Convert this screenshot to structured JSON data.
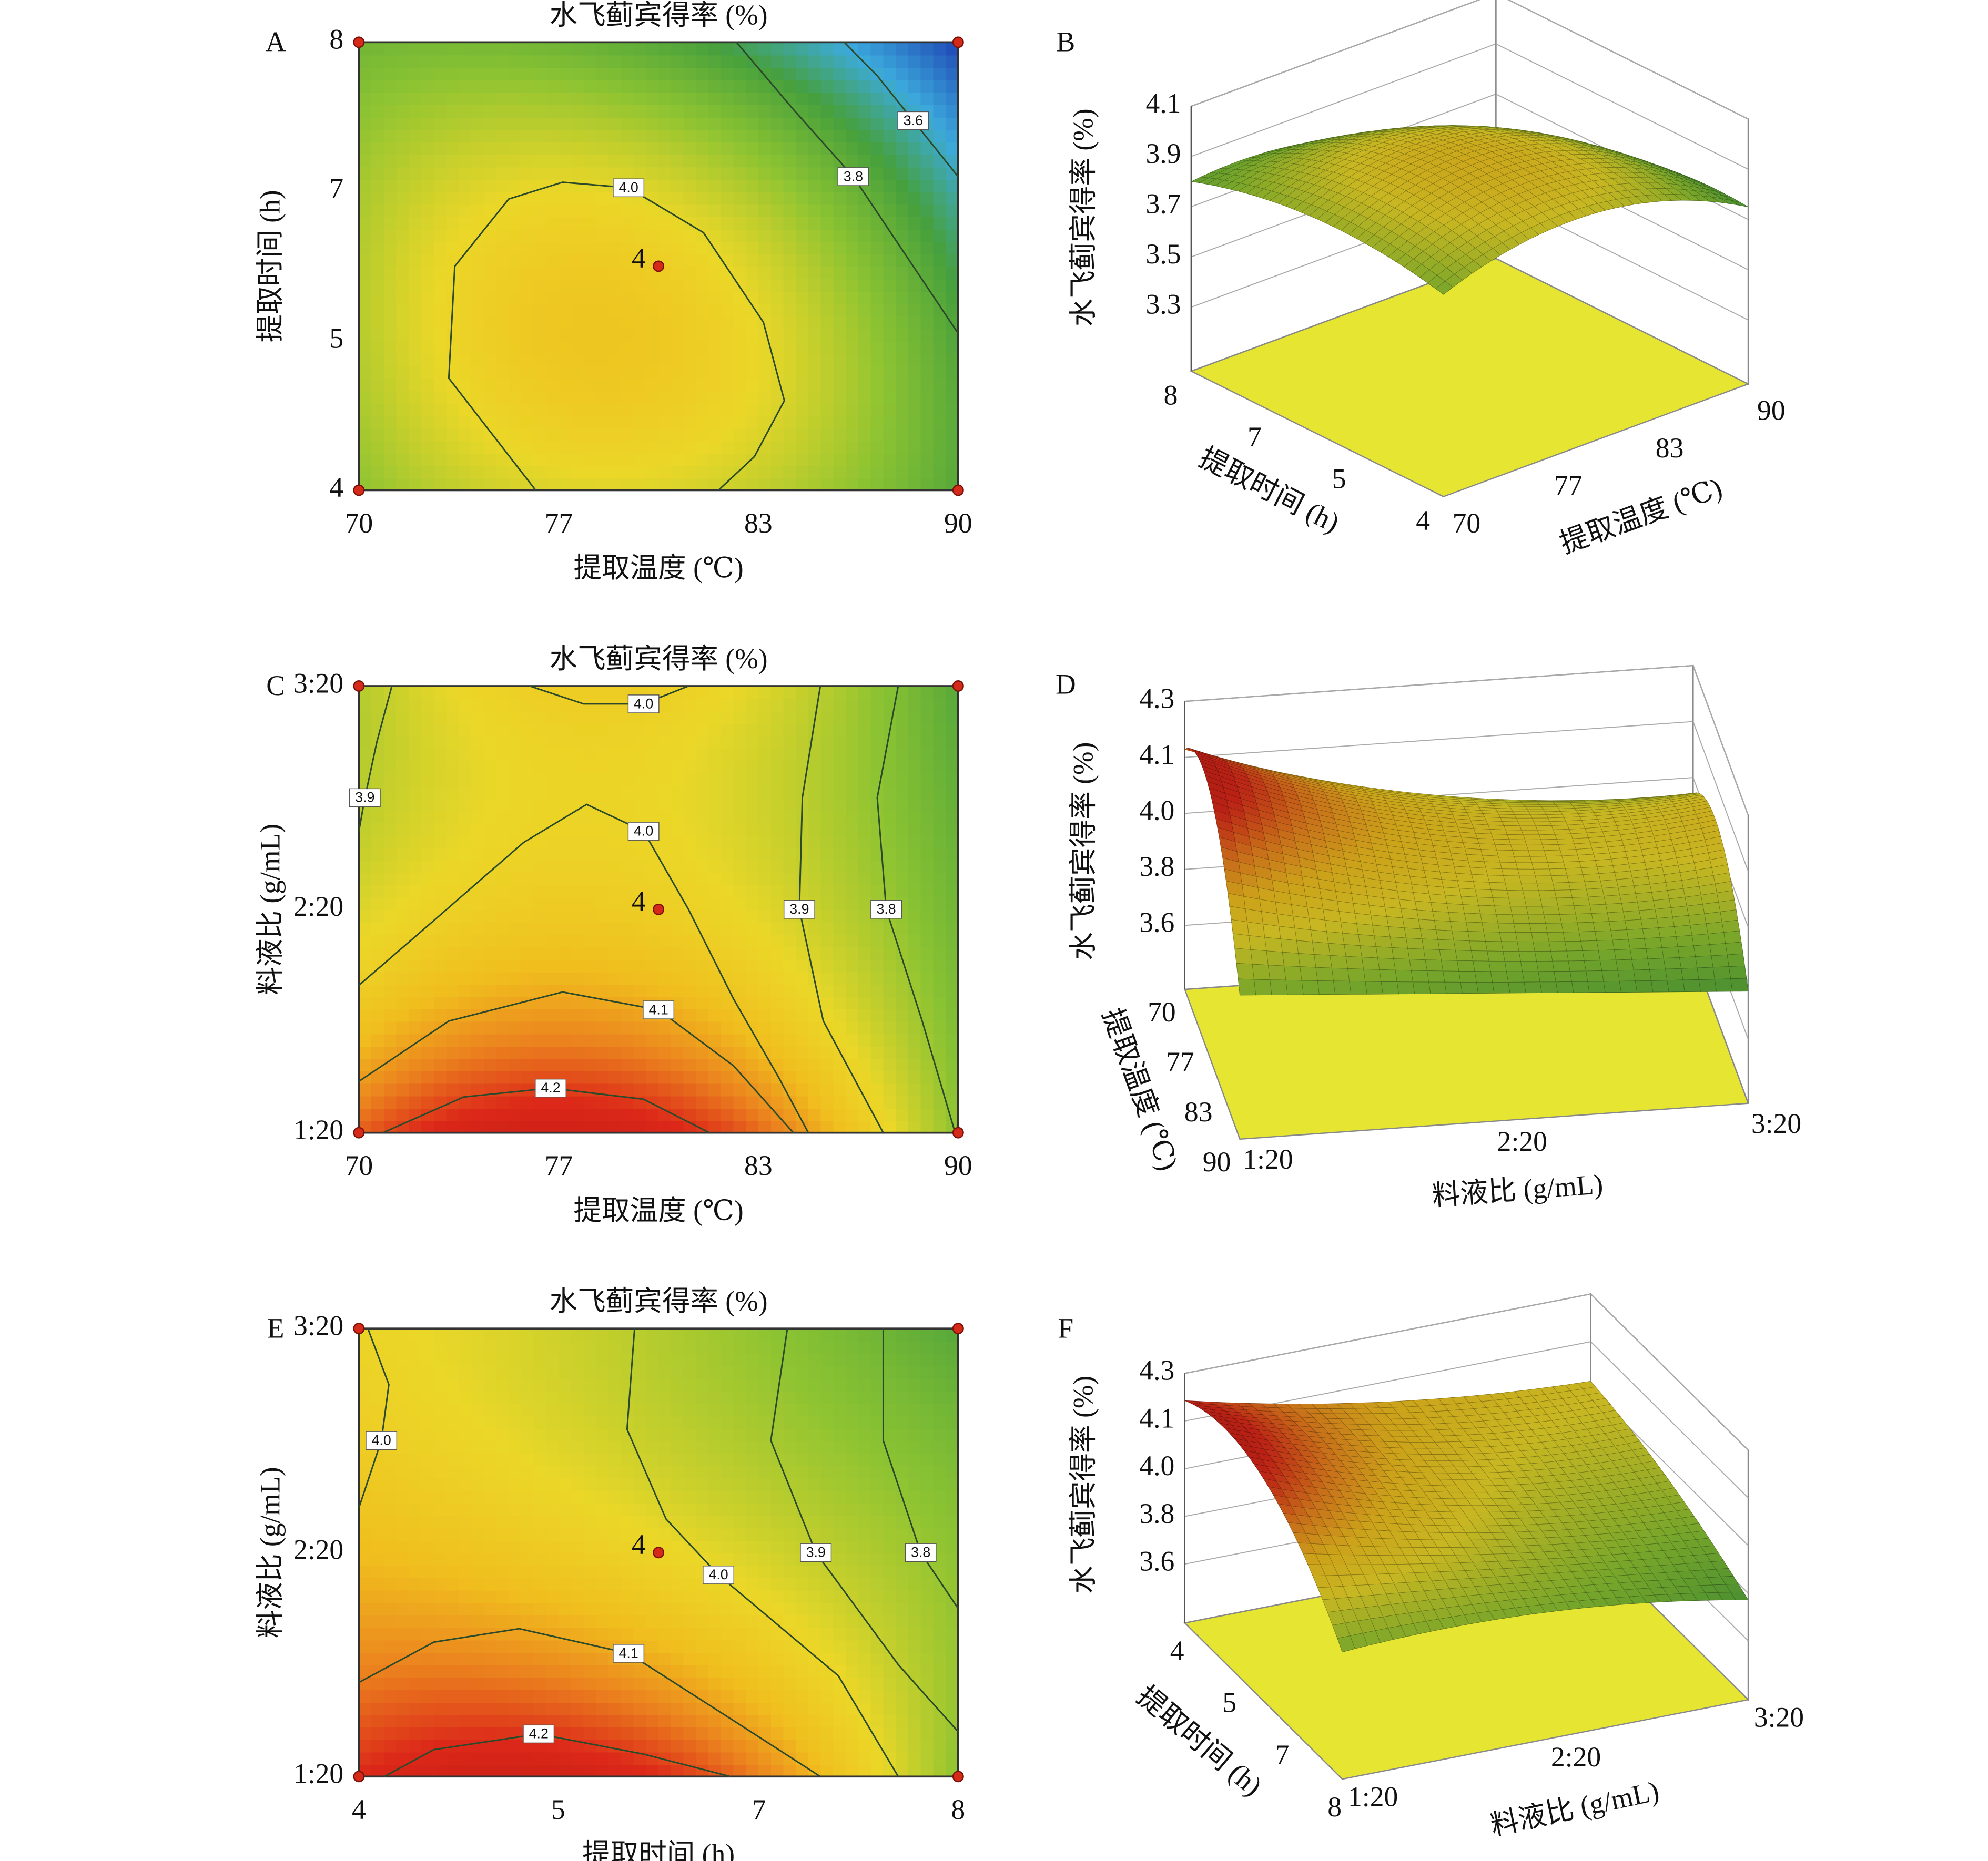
{
  "chart_data": [
    {
      "type": "contour",
      "panel": "A",
      "title": "水飞蓟宾得率 (%)",
      "x_label": "提取温度 (℃)",
      "y_label": "提取时间 (h)",
      "xlim": [
        70,
        90
      ],
      "xticks": [
        70,
        {
          "value": 76.67,
          "label": "77"
        },
        {
          "value": 83.33,
          "label": "83"
        },
        90
      ],
      "ylim": [
        4,
        8
      ],
      "yticks": [
        4,
        {
          "value": 5.33,
          "label": "5"
        },
        {
          "value": 6.67,
          "label": "7"
        },
        8
      ],
      "contours": [
        {
          "level": {
            "value": 4,
            "label": "4.0"
          },
          "x": [
            75.9,
            73,
            73.2,
            75,
            76.8,
            79,
            81.5,
            83.5,
            84.2,
            83.2,
            82
          ],
          "y": [
            4,
            5,
            6,
            6.6,
            6.75,
            6.7,
            6.3,
            5.5,
            4.8,
            4.3,
            4
          ]
        },
        {
          "level": 3.8,
          "x": [
            82.6,
            84.5,
            86.5,
            88.5,
            90
          ],
          "y": [
            8,
            7.4,
            6.8,
            6.0,
            5.4
          ]
        },
        {
          "level": 3.6,
          "x": [
            86.2,
            87.3,
            88.5,
            90
          ],
          "y": [
            8,
            7.7,
            7.3,
            6.8
          ]
        }
      ],
      "design_points": {
        "x": [
          70,
          90,
          70,
          90,
          80
        ],
        "y": [
          4,
          4,
          8,
          8,
          6
        ]
      },
      "center_count": 4
    },
    {
      "type": "surface3d",
      "panel": "B",
      "z_label": "水飞蓟宾得率 (%)",
      "x_label": "提取温度 (℃)",
      "y_label": "提取时间 (h)",
      "xlim": [
        70,
        90
      ],
      "xticks": [
        70,
        {
          "value": 76.67,
          "label": "77"
        },
        {
          "value": 83.33,
          "label": "83"
        },
        90
      ],
      "ylim": [
        4,
        8
      ],
      "yticks": [
        4,
        {
          "value": 5.33,
          "label": "5"
        },
        {
          "value": 6.67,
          "label": "7"
        },
        8
      ],
      "zlim": [
        3.3,
        4.1
      ],
      "zticks": [
        3.3,
        3.5,
        3.7,
        3.9,
        4.1
      ],
      "surface": [
        [
          3.85,
          3.95,
          3.75
        ],
        [
          3.9,
          4.0,
          3.7
        ],
        [
          3.8,
          3.75,
          3.45
        ]
      ]
    },
    {
      "type": "contour",
      "panel": "C",
      "title": "水飞蓟宾得率 (%)",
      "x_label": "提取温度 (℃)",
      "y_label": "料液比 (g/mL)",
      "xlim": [
        70,
        90
      ],
      "xticks": [
        70,
        {
          "value": 76.67,
          "label": "77"
        },
        {
          "value": 83.33,
          "label": "83"
        },
        90
      ],
      "ylim": [
        1,
        3
      ],
      "yticks": [
        {
          "value": 1,
          "label": "1:20"
        },
        {
          "value": 2,
          "label": "2:20"
        },
        {
          "value": 3,
          "label": "3:20"
        }
      ],
      "contours": [
        {
          "level": {
            "value": 4,
            "label": "4.0"
          },
          "x": [
            75.7,
            77.5,
            79.5,
            81
          ],
          "y": [
            3,
            2.92,
            2.92,
            3
          ]
        },
        {
          "level": 3.9,
          "x": [
            71.1,
            70.6,
            70.2,
            70
          ],
          "y": [
            3,
            2.75,
            2.5,
            2.35
          ]
        },
        {
          "level": {
            "value": 4,
            "label": "4.0"
          },
          "x": [
            70,
            72.5,
            75.5,
            77.6,
            79.5,
            81,
            82.5,
            84,
            85
          ],
          "y": [
            1.66,
            1.95,
            2.3,
            2.47,
            2.35,
            2.0,
            1.6,
            1.25,
            1
          ]
        },
        {
          "level": 3.9,
          "x": [
            85.4,
            84.8,
            84.7,
            85.5,
            87.5
          ],
          "y": [
            3,
            2.5,
            2.0,
            1.5,
            1
          ]
        },
        {
          "level": 3.8,
          "x": [
            88,
            87.3,
            87.6,
            88.8,
            89.9
          ],
          "y": [
            3,
            2.5,
            2.0,
            1.5,
            1
          ]
        },
        {
          "level": 4.1,
          "x": [
            70,
            73,
            76.8,
            80,
            82.5,
            84.5
          ],
          "y": [
            1.23,
            1.5,
            1.63,
            1.55,
            1.3,
            1
          ]
        },
        {
          "level": 4.2,
          "x": [
            70.8,
            73.5,
            76.4,
            79.5,
            81.7
          ],
          "y": [
            1,
            1.16,
            1.2,
            1.15,
            1
          ]
        }
      ],
      "design_points": {
        "x": [
          70,
          90,
          70,
          90,
          80
        ],
        "y": [
          1,
          1,
          3,
          3,
          2
        ]
      },
      "center_count": 4
    },
    {
      "type": "surface3d",
      "panel": "D",
      "z_label": "水飞蓟宾得率 (%)",
      "x_label": "料液比 (g/mL)",
      "y_label": "提取温度 (℃)",
      "xlim": [
        1,
        3
      ],
      "xticks": [
        {
          "value": 1,
          "label": "1:20"
        },
        {
          "value": 2,
          "label": "2:20"
        },
        {
          "value": 3,
          "label": "3:20"
        }
      ],
      "ylim": [
        70,
        90
      ],
      "yticks": [
        70,
        {
          "value": 76.67,
          "label": "77"
        },
        {
          "value": 83.33,
          "label": "83"
        },
        90
      ],
      "zlim": [
        3.6,
        4.3
      ],
      "zticks": [
        3.6,
        {
          "value": 3.775,
          "label": "3.8"
        },
        {
          "value": 3.95,
          "label": "4.0"
        },
        {
          "value": 4.125,
          "label": "4.1"
        },
        4.3
      ],
      "surface": [
        [
          4.15,
          3.95,
          3.9
        ],
        [
          4.22,
          4.0,
          4.0
        ],
        [
          3.85,
          3.8,
          3.75
        ]
      ]
    },
    {
      "type": "contour",
      "panel": "E",
      "title": "水飞蓟宾得率 (%)",
      "x_label": "提取时间 (h)",
      "y_label": "料液比 (g/mL)",
      "xlim": [
        4,
        8
      ],
      "xticks": [
        4,
        {
          "value": 5.33,
          "label": "5"
        },
        {
          "value": 6.67,
          "label": "7"
        },
        8
      ],
      "ylim": [
        1,
        3
      ],
      "yticks": [
        {
          "value": 1,
          "label": "1:20"
        },
        {
          "value": 2,
          "label": "2:20"
        },
        {
          "value": 3,
          "label": "3:20"
        }
      ],
      "contours": [
        {
          "level": {
            "value": 4,
            "label": "4.0"
          },
          "x": [
            4.06,
            4.2,
            4.15,
            4
          ],
          "y": [
            3,
            2.75,
            2.5,
            2.2
          ]
        },
        {
          "level": {
            "value": 4,
            "label": "4.0"
          },
          "x": [
            5.84,
            5.79,
            6.05,
            6.4,
            7.2,
            7.6
          ],
          "y": [
            3,
            2.55,
            2.15,
            1.9,
            1.45,
            1
          ]
        },
        {
          "level": 3.9,
          "x": [
            6.86,
            6.75,
            7.05,
            7.6,
            8
          ],
          "y": [
            3,
            2.5,
            2.0,
            1.5,
            1.2
          ]
        },
        {
          "level": 3.8,
          "x": [
            7.5,
            7.5,
            7.75,
            8
          ],
          "y": [
            3,
            2.5,
            2.0,
            1.75
          ]
        },
        {
          "level": 4.1,
          "x": [
            4,
            4.5,
            5.07,
            5.8,
            6.5,
            7.08
          ],
          "y": [
            1.42,
            1.6,
            1.66,
            1.55,
            1.25,
            1
          ]
        },
        {
          "level": 4.2,
          "x": [
            4.17,
            4.5,
            5.2,
            5.9,
            6.48
          ],
          "y": [
            1,
            1.12,
            1.19,
            1.1,
            1
          ]
        }
      ],
      "design_points": {
        "x": [
          4,
          8,
          4,
          8,
          6
        ],
        "y": [
          1,
          1,
          3,
          3,
          2
        ]
      },
      "center_count": 4
    },
    {
      "type": "surface3d",
      "panel": "F",
      "z_label": "水飞蓟宾得率 (%)",
      "x_label": "料液比 (g/mL)",
      "y_label": "提取时间 (h)",
      "xlim": [
        1,
        3
      ],
      "xticks": [
        {
          "value": 1,
          "label": "1:20"
        },
        {
          "value": 2,
          "label": "2:20"
        },
        {
          "value": 3,
          "label": "3:20"
        }
      ],
      "ylim": [
        4,
        8
      ],
      "yticks": [
        4,
        {
          "value": 5.33,
          "label": "5"
        },
        {
          "value": 6.67,
          "label": "7"
        },
        8
      ],
      "zlim": [
        3.6,
        4.3
      ],
      "zticks": [
        3.6,
        {
          "value": 3.775,
          "label": "3.8"
        },
        {
          "value": 3.95,
          "label": "4.0"
        },
        {
          "value": 4.125,
          "label": "4.1"
        },
        4.3
      ],
      "surface": [
        [
          4.2,
          4.05,
          3.98
        ],
        [
          4.2,
          3.98,
          3.9
        ],
        [
          3.85,
          3.85,
          3.75
        ]
      ]
    }
  ]
}
